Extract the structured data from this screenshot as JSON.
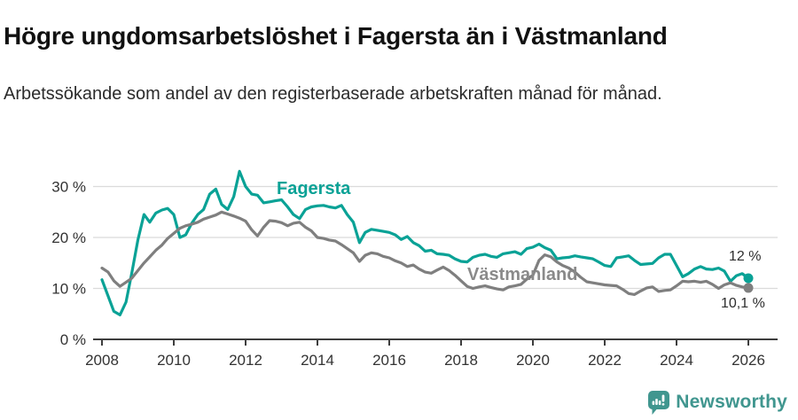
{
  "header": {
    "title": "Högre ungdomsarbetslöshet i Fagersta än i Västmanland",
    "subtitle": "Arbetssökande som andel av den registerbaserade arbetskraften månad för månad."
  },
  "footer": {
    "brand": "Newsworthy"
  },
  "colors": {
    "fagersta": "#0aa296",
    "vastmanland": "#7f7f7f",
    "gridline": "#dbdbdb",
    "axis": "#3d3d3d",
    "tick_text": "#333333",
    "brand_teal": "#40968f"
  },
  "chart_data": {
    "type": "line",
    "title": "Högre ungdomsarbetslöshet i Fagersta än i Västmanland",
    "subtitle": "Arbetssökande som andel av den registerbaserade arbetskraften månad för månad.",
    "xlabel": "",
    "ylabel": "",
    "xlim": [
      2007.75,
      2026.8
    ],
    "ylim": [
      0,
      35
    ],
    "grid": "horizontal",
    "legend_position": "inline-labels",
    "x_ticks": [
      "2008",
      "2010",
      "2012",
      "2014",
      "2016",
      "2018",
      "2020",
      "2022",
      "2024",
      "2026"
    ],
    "y_ticks": [
      {
        "v": 0,
        "label": "0 %"
      },
      {
        "v": 10,
        "label": "10 %"
      },
      {
        "v": 20,
        "label": "20 %"
      },
      {
        "v": 30,
        "label": "30 %"
      }
    ],
    "x": [
      2008,
      2008.17,
      2008.33,
      2008.5,
      2008.67,
      2008.83,
      2009,
      2009.17,
      2009.33,
      2009.5,
      2009.67,
      2009.83,
      2010,
      2010.17,
      2010.33,
      2010.5,
      2010.67,
      2010.83,
      2011,
      2011.17,
      2011.33,
      2011.5,
      2011.67,
      2011.83,
      2012,
      2012.17,
      2012.33,
      2012.5,
      2012.67,
      2012.83,
      2013,
      2013.17,
      2013.33,
      2013.5,
      2013.67,
      2013.83,
      2014,
      2014.17,
      2014.33,
      2014.5,
      2014.67,
      2014.83,
      2015,
      2015.17,
      2015.33,
      2015.5,
      2015.67,
      2015.83,
      2016,
      2016.17,
      2016.33,
      2016.5,
      2016.67,
      2016.83,
      2017,
      2017.17,
      2017.33,
      2017.5,
      2017.67,
      2017.83,
      2018,
      2018.17,
      2018.33,
      2018.5,
      2018.67,
      2018.83,
      2019,
      2019.17,
      2019.33,
      2019.5,
      2019.67,
      2019.83,
      2020,
      2020.17,
      2020.33,
      2020.5,
      2020.67,
      2020.83,
      2021,
      2021.17,
      2021.33,
      2021.5,
      2021.67,
      2021.83,
      2022,
      2022.17,
      2022.33,
      2022.5,
      2022.67,
      2022.83,
      2023,
      2023.17,
      2023.33,
      2023.5,
      2023.67,
      2023.83,
      2024,
      2024.17,
      2024.33,
      2024.5,
      2024.67,
      2024.83,
      2025,
      2025.17,
      2025.33,
      2025.5,
      2025.67,
      2025.83,
      2026
    ],
    "series": [
      {
        "name": "Fagersta",
        "color": "#0aa296",
        "end_label": "12 %",
        "end_value": 12.0,
        "values": [
          11.7,
          8.5,
          5.5,
          4.8,
          7.3,
          13,
          19.5,
          24.5,
          23,
          24.8,
          25.4,
          25.7,
          24.5,
          20,
          20.5,
          22.8,
          24.5,
          25.5,
          28.5,
          29.5,
          26.5,
          25.5,
          28,
          33,
          30,
          28.5,
          28.3,
          26.8,
          27,
          27.2,
          27.4,
          26,
          24.5,
          23.7,
          25.5,
          26,
          26.2,
          26.3,
          26,
          25.8,
          26.3,
          24.5,
          23,
          19,
          21,
          21.6,
          21.4,
          21.2,
          21,
          20.5,
          19.6,
          20.2,
          19,
          18.4,
          17.3,
          17.5,
          16.8,
          16.7,
          16.5,
          15.8,
          15.3,
          15.2,
          16.1,
          16.5,
          16.7,
          16.3,
          16.1,
          16.8,
          17,
          17.2,
          16.7,
          17.8,
          18.1,
          18.7,
          18,
          17.5,
          15.8,
          16,
          16.1,
          16.4,
          16.2,
          16,
          15.8,
          15.2,
          14.5,
          14.3,
          16,
          16.2,
          16.4,
          15.5,
          14.7,
          14.8,
          14.9,
          16,
          16.7,
          16.7,
          14.5,
          12.3,
          12.9,
          13.8,
          14.3,
          13.8,
          13.7,
          14,
          13.4,
          11.4,
          12.5,
          12.9,
          12
        ]
      },
      {
        "name": "Västmanland",
        "color": "#7f7f7f",
        "end_label": "10,1 %",
        "end_value": 10.1,
        "values": [
          14,
          13.2,
          11.5,
          10.4,
          11.2,
          12,
          13.5,
          15,
          16.2,
          17.5,
          18.5,
          19.8,
          20.8,
          21.8,
          22.3,
          22.6,
          23,
          23.6,
          24,
          24.4,
          25,
          24.6,
          24.2,
          23.8,
          23.2,
          21.5,
          20.3,
          22,
          23.3,
          23.2,
          22.9,
          22.3,
          22.8,
          23,
          22,
          21.3,
          20,
          19.8,
          19.5,
          19.3,
          18.6,
          17.8,
          17,
          15.3,
          16.5,
          17,
          16.8,
          16.3,
          16,
          15.4,
          15,
          14.3,
          14.6,
          13.8,
          13.2,
          13,
          13.6,
          14.2,
          13.5,
          12.6,
          11.5,
          10.4,
          10,
          10.3,
          10.5,
          10.2,
          9.9,
          9.7,
          10.3,
          10.5,
          10.8,
          11.8,
          12.6,
          15.5,
          16.6,
          16.2,
          15.2,
          14.5,
          14,
          13.2,
          12.2,
          11.3,
          11.1,
          10.9,
          10.7,
          10.6,
          10.5,
          9.8,
          9,
          8.8,
          9.5,
          10.1,
          10.3,
          9.4,
          9.6,
          9.7,
          10.5,
          11.4,
          11.3,
          11.4,
          11.2,
          11.4,
          10.8,
          10,
          10.7,
          11.1,
          10.6,
          10.3,
          10.1
        ]
      }
    ]
  }
}
